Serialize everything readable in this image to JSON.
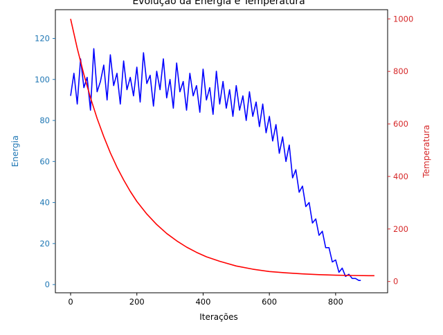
{
  "chart_data": {
    "type": "line",
    "title": "Evolução da Energia e Temperatura",
    "xlabel": "Iterações",
    "ylabel_left": "Energia",
    "ylabel_right": "Temperatura",
    "xlim": [
      -46,
      957
    ],
    "ylim_left": [
      -4,
      134
    ],
    "ylim_right": [
      -43,
      1035
    ],
    "x_ticks": [
      0,
      200,
      400,
      600,
      800
    ],
    "y_left_ticks": [
      0,
      20,
      40,
      60,
      80,
      100,
      120
    ],
    "y_right_ticks": [
      0,
      200,
      400,
      600,
      800,
      1000
    ],
    "colors": {
      "energy": "#0000ff",
      "temperature": "#ff0000",
      "left_axis": "#1f77b4",
      "right_axis": "#d62728",
      "axes": "#000000"
    },
    "series": [
      {
        "axis": "left",
        "color": "#0000ff",
        "x": [
          0,
          10,
          20,
          30,
          40,
          50,
          60,
          70,
          80,
          90,
          100,
          110,
          120,
          130,
          140,
          150,
          160,
          170,
          180,
          190,
          200,
          210,
          220,
          230,
          240,
          250,
          260,
          270,
          280,
          290,
          300,
          310,
          320,
          330,
          340,
          350,
          360,
          370,
          380,
          390,
          400,
          410,
          420,
          430,
          440,
          450,
          460,
          470,
          480,
          490,
          500,
          510,
          520,
          530,
          540,
          550,
          560,
          570,
          580,
          590,
          600,
          610,
          620,
          630,
          640,
          650,
          660,
          670,
          680,
          690,
          700,
          710,
          720,
          730,
          740,
          750,
          760,
          770,
          780,
          790,
          800,
          810,
          820,
          830,
          840,
          850,
          860,
          870,
          876
        ],
        "values": [
          92,
          103,
          88,
          110,
          96,
          101,
          85,
          115,
          94,
          99,
          107,
          90,
          112,
          97,
          103,
          88,
          109,
          95,
          101,
          92,
          106,
          89,
          113,
          98,
          102,
          87,
          104,
          95,
          110,
          91,
          100,
          86,
          108,
          94,
          99,
          85,
          103,
          92,
          97,
          84,
          105,
          90,
          96,
          83,
          104,
          88,
          99,
          86,
          95,
          82,
          97,
          85,
          92,
          80,
          94,
          82,
          89,
          77,
          88,
          74,
          82,
          70,
          78,
          64,
          72,
          60,
          68,
          52,
          56,
          45,
          48,
          38,
          40,
          30,
          32,
          24,
          26,
          18,
          18,
          11,
          12,
          6,
          8,
          4,
          5,
          3,
          3,
          2,
          2
        ]
      },
      {
        "axis": "right",
        "color": "#ff0000",
        "x": [
          0,
          20,
          40,
          60,
          80,
          100,
          120,
          140,
          160,
          180,
          200,
          230,
          260,
          290,
          320,
          350,
          380,
          410,
          450,
          500,
          550,
          600,
          650,
          700,
          750,
          800,
          850,
          900,
          917
        ],
        "values": [
          1000,
          888,
          788,
          700,
          621,
          552,
          490,
          435,
          387,
          343,
          305,
          257,
          217,
          183,
          155,
          131,
          111,
          94,
          77,
          59,
          47,
          38,
          33,
          29,
          26,
          24,
          23,
          22,
          22
        ]
      }
    ]
  }
}
